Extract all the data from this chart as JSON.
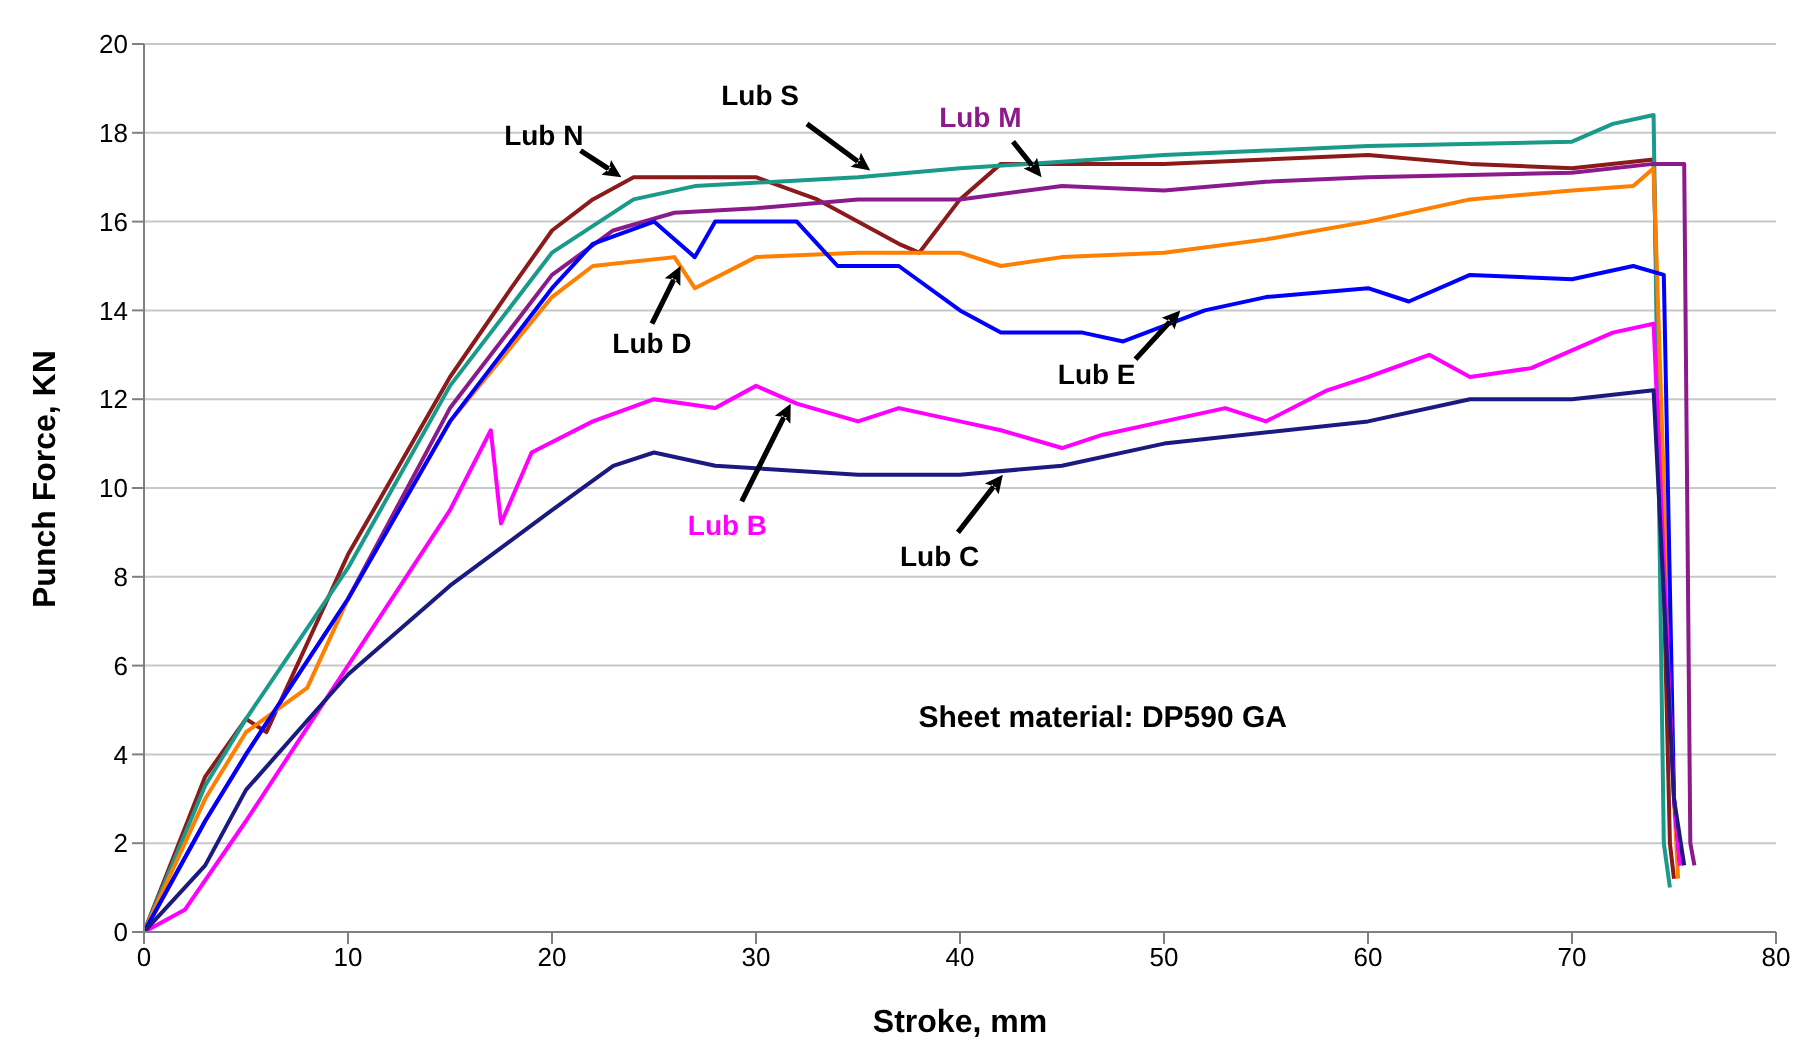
{
  "chart_data": {
    "type": "line",
    "xlabel": "Stroke, mm",
    "ylabel": "Punch Force, KN",
    "xlim": [
      0,
      80
    ],
    "xticks": [
      0,
      10,
      20,
      30,
      40,
      50,
      60,
      70,
      80
    ],
    "ylim": [
      0,
      20
    ],
    "yticks": [
      0,
      2,
      4,
      6,
      8,
      10,
      12,
      14,
      16,
      18,
      20
    ],
    "grid": "y",
    "marker": "none",
    "line_style": "solid",
    "annotations": [
      "Sheet material: DP590 GA"
    ],
    "series": [
      {
        "name": "Lub N",
        "color": "#8b1a1a",
        "x": [
          0,
          3,
          5,
          6,
          10,
          15,
          18,
          20,
          22,
          24,
          30,
          33,
          37,
          38,
          40,
          42,
          50,
          60,
          65,
          70,
          74,
          74.8,
          75
        ],
        "values": [
          0,
          3.5,
          4.8,
          4.5,
          8.5,
          12.5,
          14.5,
          15.8,
          16.5,
          17,
          17,
          16.5,
          15.5,
          15.3,
          16.5,
          17.3,
          17.3,
          17.5,
          17.3,
          17.2,
          17.4,
          2,
          1.2
        ]
      },
      {
        "name": "Lub S",
        "color": "#1a9a8a",
        "x": [
          0,
          3,
          5,
          10,
          15,
          20,
          24,
          27,
          35,
          40,
          50,
          60,
          70,
          72,
          74,
          74.5,
          74.8
        ],
        "values": [
          0,
          3.3,
          4.8,
          8.2,
          12.3,
          15.3,
          16.5,
          16.8,
          17,
          17.2,
          17.5,
          17.7,
          17.8,
          18.2,
          18.4,
          2,
          1
        ]
      },
      {
        "name": "Lub M",
        "color": "#8b1a8b",
        "x": [
          0,
          3,
          5,
          10,
          15,
          20,
          23,
          26,
          30,
          35,
          40,
          45,
          50,
          55,
          60,
          70,
          74,
          75.5,
          75.8,
          76
        ],
        "values": [
          0,
          2.5,
          4,
          7.5,
          11.8,
          14.8,
          15.8,
          16.2,
          16.3,
          16.5,
          16.5,
          16.8,
          16.7,
          16.9,
          17,
          17.1,
          17.3,
          17.3,
          2,
          1.5
        ]
      },
      {
        "name": "Lub D",
        "color": "#ff7f00",
        "x": [
          0,
          3,
          5,
          8,
          10,
          15,
          20,
          22,
          26,
          27,
          30,
          35,
          40,
          42,
          45,
          50,
          55,
          60,
          65,
          70,
          73,
          74,
          75,
          75.2
        ],
        "values": [
          0,
          3,
          4.5,
          5.5,
          7.5,
          11.5,
          14.3,
          15,
          15.2,
          14.5,
          15.2,
          15.3,
          15.3,
          15,
          15.2,
          15.3,
          15.6,
          16,
          16.5,
          16.7,
          16.8,
          17.2,
          3,
          1.2
        ]
      },
      {
        "name": "Lub E",
        "color": "#0000ff",
        "x": [
          0,
          3,
          5,
          10,
          15,
          20,
          22,
          25,
          27,
          28,
          32,
          34,
          37,
          40,
          42,
          46,
          48,
          52,
          55,
          60,
          62,
          65,
          70,
          73,
          74.5,
          75,
          75.3
        ],
        "values": [
          0,
          2.5,
          4,
          7.5,
          11.5,
          14.5,
          15.5,
          16,
          15.2,
          16,
          16,
          15,
          15,
          14,
          13.5,
          13.5,
          13.3,
          14,
          14.3,
          14.5,
          14.2,
          14.8,
          14.7,
          15,
          14.8,
          3,
          1.5
        ]
      },
      {
        "name": "Lub B",
        "color": "#ff00ff",
        "x": [
          0,
          2,
          5,
          10,
          15,
          17,
          17.5,
          19,
          22,
          25,
          28,
          30,
          32,
          35,
          37,
          40,
          42,
          45,
          47,
          50,
          53,
          55,
          58,
          60,
          63,
          65,
          68,
          72,
          74,
          75,
          75.3
        ],
        "values": [
          0,
          0.5,
          2.5,
          6,
          9.5,
          11.3,
          9.2,
          10.8,
          11.5,
          12,
          11.8,
          12.3,
          11.9,
          11.5,
          11.8,
          11.5,
          11.3,
          10.9,
          11.2,
          11.5,
          11.8,
          11.5,
          12.2,
          12.5,
          13,
          12.5,
          12.7,
          13.5,
          13.7,
          3,
          1.5
        ]
      },
      {
        "name": "Lub C",
        "color": "#1a1a80",
        "x": [
          0,
          3,
          5,
          10,
          15,
          20,
          23,
          25,
          28,
          35,
          40,
          45,
          50,
          60,
          65,
          70,
          74,
          75,
          75.5
        ],
        "values": [
          0,
          1.5,
          3.2,
          5.8,
          7.8,
          9.5,
          10.5,
          10.8,
          10.5,
          10.3,
          10.3,
          10.5,
          11,
          11.5,
          12,
          12,
          12.2,
          3,
          1.5
        ]
      }
    ]
  }
}
